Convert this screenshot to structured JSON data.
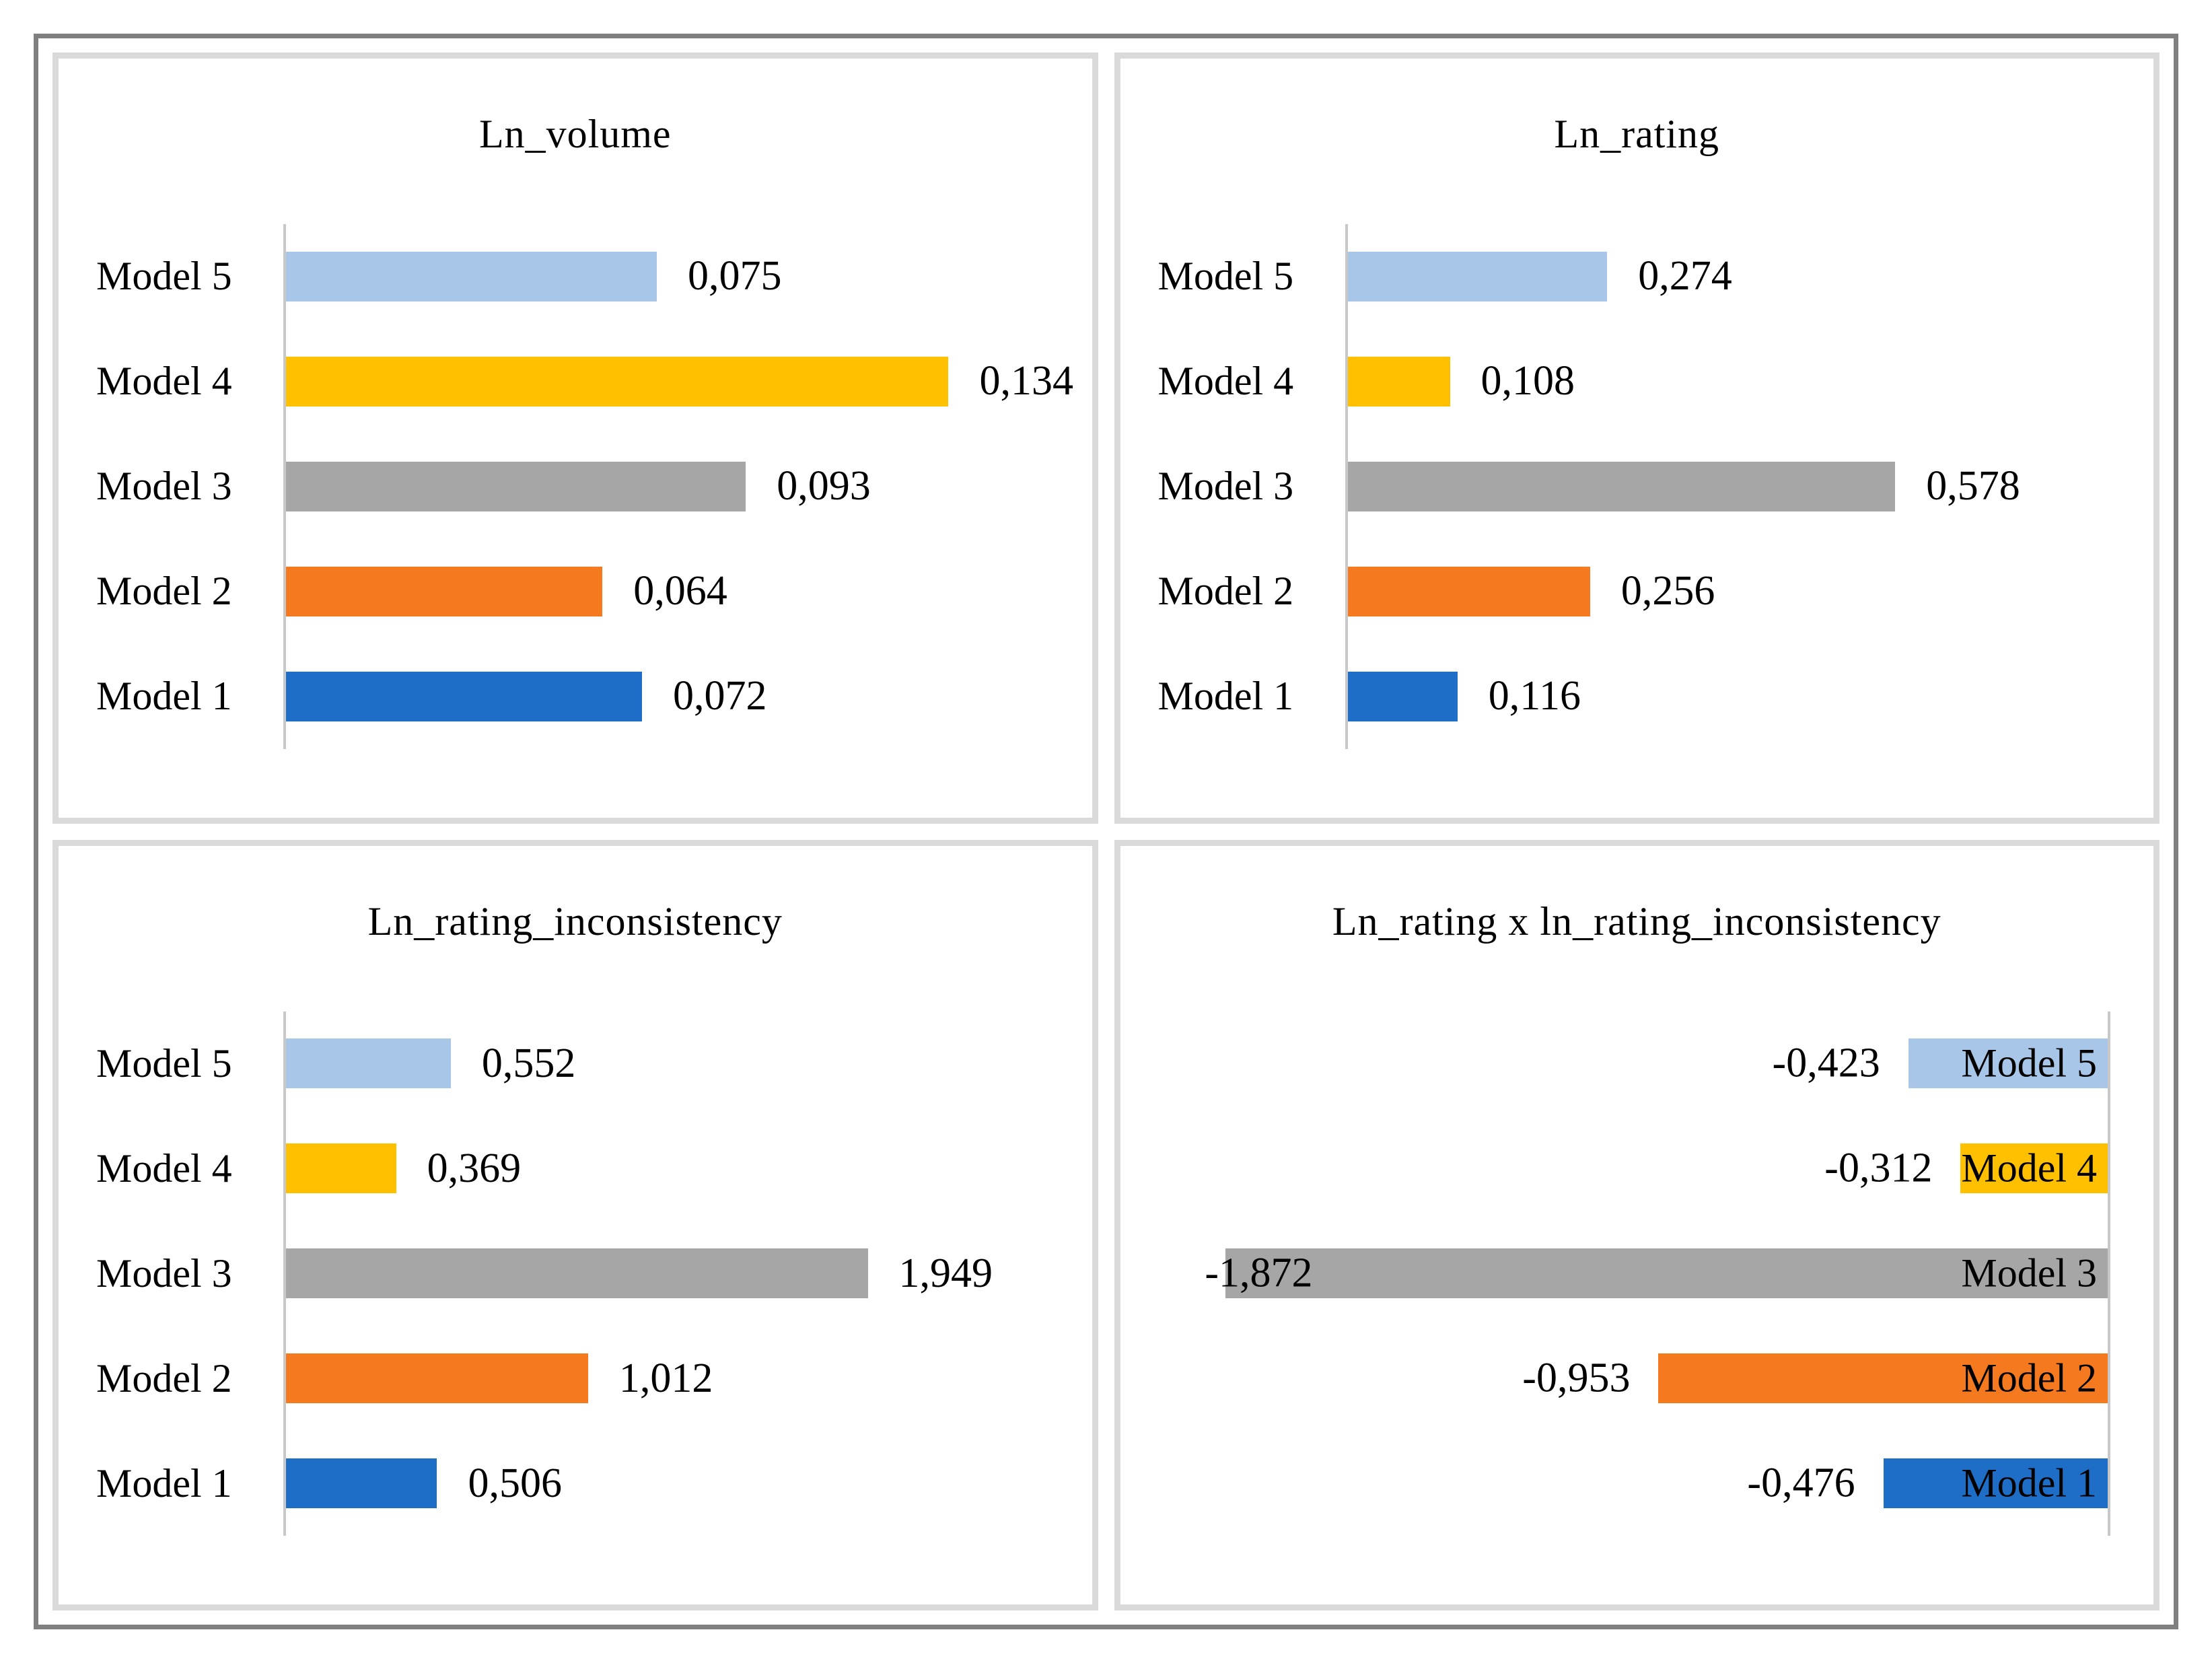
{
  "figure": {
    "background": "#ffffff",
    "outer_border_color": "#7f7f7f",
    "panel_border_color": "#dadada",
    "axis_line_color": "#c8c8c8",
    "text_color": "#000000"
  },
  "palette": {
    "Model 1": "#1e6ec8",
    "Model 2": "#f4791f",
    "Model 3": "#a6a6a6",
    "Model 4": "#ffc000",
    "Model 5": "#a8c6e8"
  },
  "chart_data": [
    {
      "type": "bar",
      "orientation": "horizontal",
      "title": "Ln_volume",
      "categories": [
        "Model 5",
        "Model 4",
        "Model 3",
        "Model 2",
        "Model 1"
      ],
      "values": [
        0.075,
        0.134,
        0.093,
        0.064,
        0.072
      ],
      "value_labels": [
        "0,075",
        "0,134",
        "0,093",
        "0,064",
        "0,072"
      ],
      "direction": "positive",
      "axis_max_abs": 0.16,
      "grid": false,
      "legend": false
    },
    {
      "type": "bar",
      "orientation": "horizontal",
      "title": "Ln_rating",
      "categories": [
        "Model 5",
        "Model 4",
        "Model 3",
        "Model 2",
        "Model 1"
      ],
      "values": [
        0.274,
        0.108,
        0.578,
        0.256,
        0.116
      ],
      "value_labels": [
        "0,274",
        "0,108",
        "0,578",
        "0,256",
        "0,116"
      ],
      "direction": "positive",
      "axis_max_abs": 0.835,
      "grid": false,
      "legend": false
    },
    {
      "type": "bar",
      "orientation": "horizontal",
      "title": "Ln_rating_inconsistency",
      "categories": [
        "Model 5",
        "Model 4",
        "Model 3",
        "Model 2",
        "Model 1"
      ],
      "values": [
        0.552,
        0.369,
        1.949,
        1.012,
        0.506
      ],
      "value_labels": [
        "0,552",
        "0,369",
        "1,949",
        "1,012",
        "0,506"
      ],
      "direction": "positive",
      "axis_max_abs": 2.65,
      "grid": false,
      "legend": false
    },
    {
      "type": "bar",
      "orientation": "horizontal",
      "title": "Ln_rating x ln_rating_inconsistency",
      "categories": [
        "Model 5",
        "Model 4",
        "Model 3",
        "Model 2",
        "Model 1"
      ],
      "values": [
        -0.423,
        -0.312,
        -1.872,
        -0.953,
        -0.476
      ],
      "value_labels": [
        "-0,423",
        "-0,312",
        "-1,872",
        "-0,953",
        "-0,476"
      ],
      "direction": "negative",
      "axis_max_abs": 2.075,
      "grid": false,
      "legend": false
    }
  ]
}
